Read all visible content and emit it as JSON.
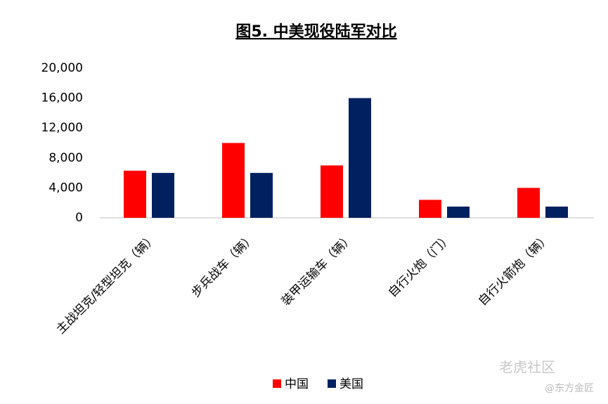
{
  "chart_data": {
    "type": "bar",
    "title": "图5. 中美现役陆军对比",
    "categories": [
      "主战坦克/轻型坦克（辆）",
      "步兵战车（辆）",
      "装甲运输车（辆）",
      "自行火炮（门）",
      "自行火箭炮（辆）"
    ],
    "series": [
      {
        "name": "中国",
        "color": "#ff0000",
        "values": [
          6300,
          10000,
          7000,
          2400,
          4000
        ]
      },
      {
        "name": "美国",
        "color": "#002060",
        "values": [
          6000,
          6000,
          16000,
          1500,
          1500
        ]
      }
    ],
    "ylim": [
      0,
      20000
    ],
    "yticks": [
      0,
      {
        "value": 4000,
        "label": "4,000"
      },
      {
        "value": 8000,
        "label": "8,000"
      },
      {
        "value": 12000,
        "label": "12,000"
      },
      {
        "value": 16000,
        "label": "16,000"
      },
      {
        "value": 20000,
        "label": "20,000"
      }
    ],
    "grid": false,
    "legend": "bottom"
  },
  "watermark": {
    "brand": "老虎社区",
    "author": "@东方金匠"
  }
}
